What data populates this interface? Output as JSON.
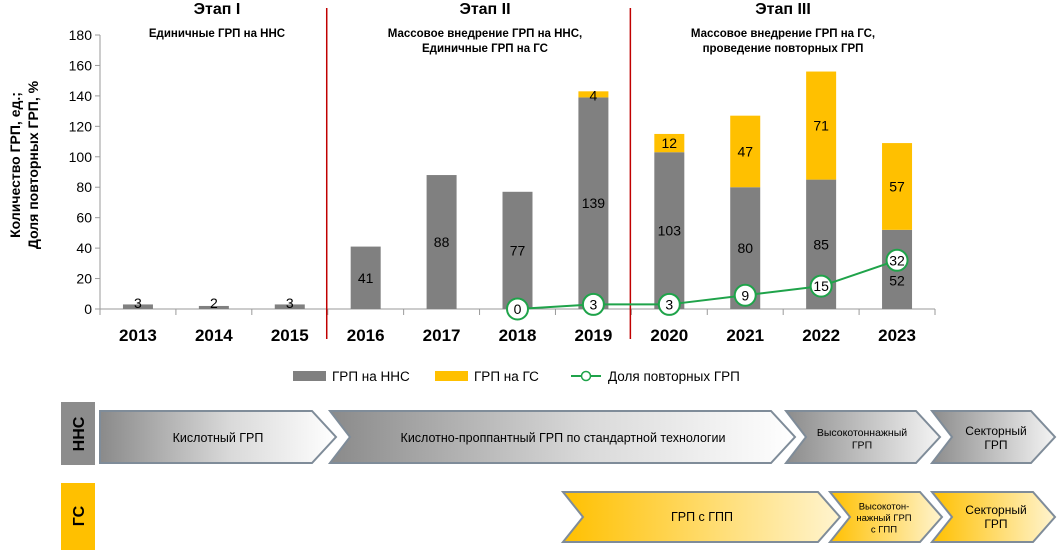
{
  "chart_data": {
    "type": "bar",
    "ylabel_line1": "Количество ГРП, ед.;",
    "ylabel_line2": "Доля повторных ГРП, %",
    "ylim": [
      0,
      180
    ],
    "yticks": [
      0,
      20,
      40,
      60,
      80,
      100,
      120,
      140,
      160,
      180
    ],
    "categories": [
      "2013",
      "2014",
      "2015",
      "2016",
      "2017",
      "2018",
      "2019",
      "2020",
      "2021",
      "2022",
      "2023"
    ],
    "series": [
      {
        "name": "ГРП на ННС",
        "color": "#808080",
        "values": [
          3,
          2,
          3,
          41,
          88,
          77,
          139,
          103,
          80,
          85,
          52
        ]
      },
      {
        "name": "ГРП на ГС",
        "color": "#ffc000",
        "values": [
          0,
          0,
          0,
          0,
          0,
          0,
          4,
          12,
          47,
          71,
          57
        ]
      },
      {
        "name": "Доля повторных ГРП",
        "color": "#1fa34a",
        "type": "line",
        "x": [
          "2018",
          "2019",
          "2020",
          "2021",
          "2022",
          "2023"
        ],
        "values": [
          0,
          3,
          3,
          9,
          15,
          32
        ]
      }
    ],
    "stages": [
      {
        "title": "Этап I",
        "lines": [
          "Единичные ГРП на ННС"
        ]
      },
      {
        "title": "Этап II",
        "lines": [
          "Массовое внедрение ГРП на ННС,",
          "Единичные ГРП на ГС"
        ]
      },
      {
        "title": "Этап III",
        "lines": [
          "Массовое внедрение ГРП  на ГС,",
          "проведение повторных ГРП"
        ]
      }
    ],
    "stage_divider_color": "#c00000",
    "grid": false,
    "legend": "bottom"
  },
  "timeline": {
    "nns_label": "ННС",
    "gs_label": "ГС",
    "nns_arrows": [
      {
        "lines": [
          "Кислотный ГРП"
        ]
      },
      {
        "lines": [
          "Кислотно-проппантный  ГРП по стандартной  технологии"
        ]
      },
      {
        "lines": [
          "Высокотоннажный",
          "ГРП"
        ]
      },
      {
        "lines": [
          "Секторный",
          "ГРП"
        ]
      }
    ],
    "gs_arrows": [
      {
        "lines": [
          "ГРП с ГПП"
        ]
      },
      {
        "lines": [
          "Высокотон-",
          "нажный ГРП",
          "с ГПП"
        ]
      },
      {
        "lines": [
          "Секторный",
          "ГРП"
        ]
      }
    ]
  }
}
